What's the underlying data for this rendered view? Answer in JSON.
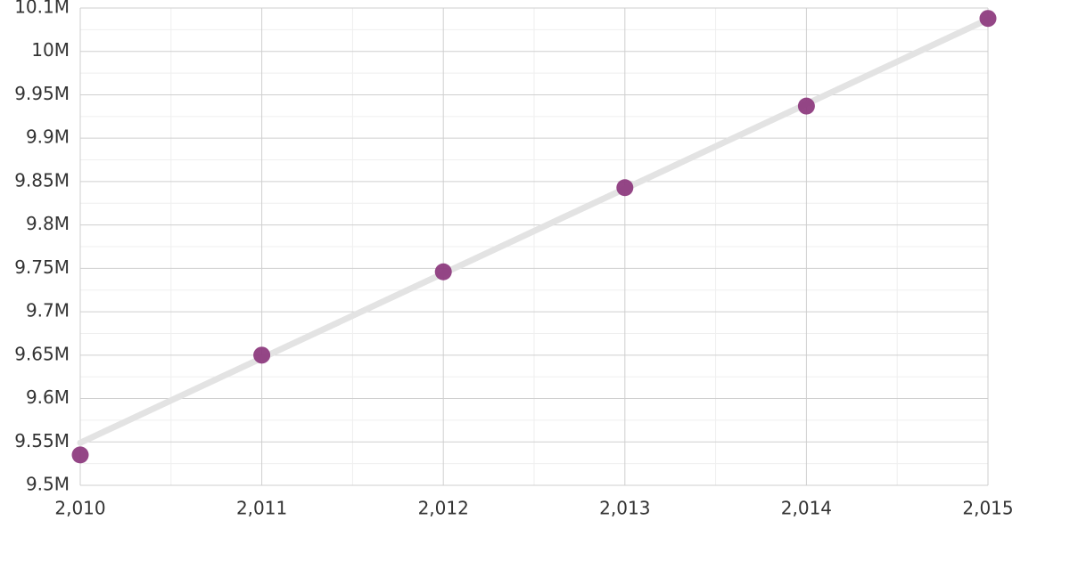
{
  "chart_data": {
    "type": "scatter",
    "x": [
      2010,
      2011,
      2012,
      2013,
      2014,
      2015
    ],
    "series": [
      {
        "color": "#8e3c80",
        "values": [
          9535000,
          9650000,
          9746000,
          9843000,
          9937000,
          10038000
        ]
      }
    ],
    "trend_line": {
      "x": [
        2010,
        2015
      ],
      "values": [
        9549000,
        10037000
      ],
      "color": "#e3e3e3"
    },
    "xlim": [
      2010,
      2015
    ],
    "xticks": [
      {
        "value": 2010,
        "label": "2,010"
      },
      {
        "value": 2011,
        "label": "2,011"
      },
      {
        "value": 2012,
        "label": "2,012"
      },
      {
        "value": 2013,
        "label": "2,013"
      },
      {
        "value": 2014,
        "label": "2,014"
      },
      {
        "value": 2015,
        "label": "2,015"
      }
    ],
    "ylim": [
      9500000,
      10050000
    ],
    "yticks": [
      {
        "value": 9500000,
        "label": "9.5M"
      },
      {
        "value": 9550000,
        "label": "9.55M"
      },
      {
        "value": 9600000,
        "label": "9.6M"
      },
      {
        "value": 9650000,
        "label": "9.65M"
      },
      {
        "value": 9700000,
        "label": "9.7M"
      },
      {
        "value": 9750000,
        "label": "9.75M"
      },
      {
        "value": 9800000,
        "label": "9.8M"
      },
      {
        "value": 9850000,
        "label": "9.85M"
      },
      {
        "value": 9900000,
        "label": "9.9M"
      },
      {
        "value": 9950000,
        "label": "9.95M"
      },
      {
        "value": 10000000,
        "label": "10M"
      },
      {
        "value": 10050000,
        "label": "10.1M"
      }
    ],
    "grid": true,
    "minor_grid": true
  }
}
